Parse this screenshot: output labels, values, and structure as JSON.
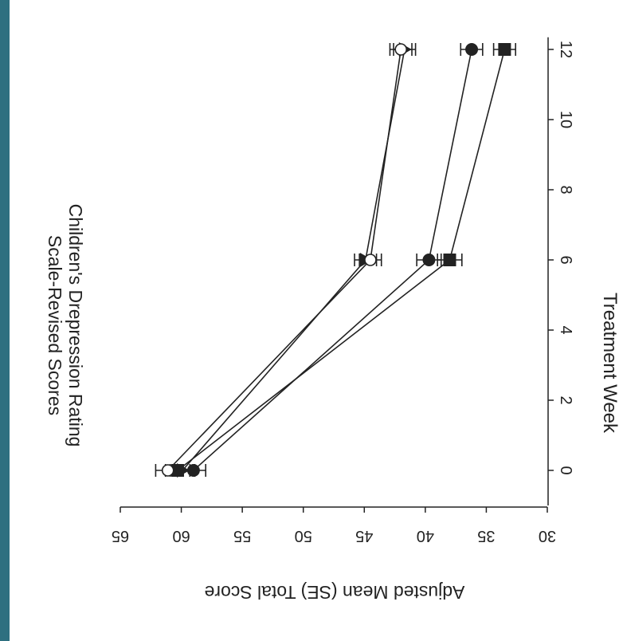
{
  "colors": {
    "page_stripe": "#2e7080",
    "ink": "#222222"
  },
  "chart_data": {
    "type": "line",
    "orientation": "rotated 90 degrees clockwise",
    "title": [
      "Children's Drepression Rating",
      "Scale-Revised Scores"
    ],
    "xlabel": "Treatment Week",
    "ylabel": "Adjusted Mean (SE) Total Score",
    "xlim": [
      -1,
      12.3
    ],
    "ylim": [
      30,
      65
    ],
    "xticks": [
      "0",
      "2",
      "4",
      "6",
      "8",
      "10",
      "12"
    ],
    "yticks": [
      "30",
      "35",
      "40",
      "45",
      "50",
      "55",
      "60",
      "65"
    ],
    "grid": false,
    "series": [
      {
        "marker": "square",
        "x": [
          0,
          6,
          12
        ],
        "y": [
          60.3,
          38.0,
          33.5
        ],
        "se": [
          1.0,
          1.0,
          0.9
        ]
      },
      {
        "marker": "circle",
        "x": [
          0,
          6,
          12
        ],
        "y": [
          59.0,
          39.7,
          36.2
        ],
        "se": [
          1.0,
          1.0,
          0.9
        ]
      },
      {
        "marker": "triangle",
        "x": [
          0,
          6,
          12
        ],
        "y": [
          59.9,
          44.9,
          41.7
        ],
        "se": [
          1.0,
          0.9,
          0.9
        ]
      },
      {
        "marker": "open-circle",
        "x": [
          0,
          6,
          12
        ],
        "y": [
          61.1,
          44.5,
          42.0
        ],
        "se": [
          1.0,
          0.9,
          0.9
        ]
      }
    ]
  }
}
